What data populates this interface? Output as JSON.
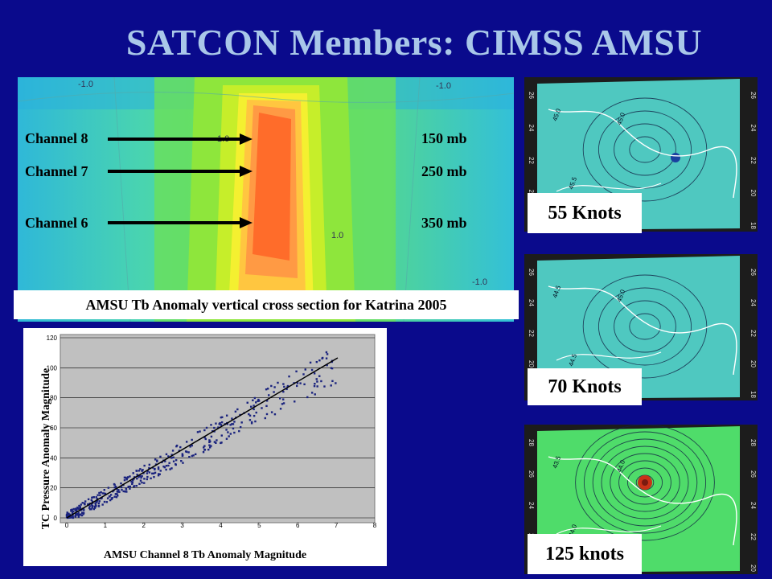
{
  "title": "SATCON Members:  CIMSS AMSU",
  "cross_section": {
    "caption": "AMSU Tb Anomaly vertical cross section for Katrina 2005",
    "channels": [
      {
        "label": "Channel 8",
        "level": "150 mb"
      },
      {
        "label": "Channel 7",
        "level": "250 mb"
      },
      {
        "label": "Channel 6",
        "level": "350 mb"
      }
    ],
    "contour_labels": [
      "-1.0",
      "-1.0",
      "1.0",
      "1.0",
      "-1.0"
    ]
  },
  "scatter": {
    "xlabel": "AMSU Channel 8 Tb Anomaly Magnitude",
    "ylabel": "TC Pressure Anomaly Magnitude",
    "x_ticks": [
      "0",
      "1",
      "2",
      "3",
      "4",
      "5",
      "6",
      "7",
      "8"
    ],
    "y_ticks": [
      "0",
      "20",
      "40",
      "60",
      "80",
      "100",
      "120"
    ]
  },
  "maps": [
    {
      "label": "55 Knots",
      "lat_ticks": [
        "26",
        "24",
        "22",
        "20",
        "18"
      ],
      "contours": [
        "45.0",
        "45.0",
        "45.5"
      ]
    },
    {
      "label": "70 Knots",
      "lat_ticks": [
        "26",
        "24",
        "22",
        "20",
        "18"
      ],
      "contours": [
        "44.5",
        "45.0",
        "44.5"
      ]
    },
    {
      "label": "125 knots",
      "lat_ticks": [
        "28",
        "26",
        "24",
        "22",
        "20"
      ],
      "contours": [
        "43.5",
        "44.0",
        "44.0"
      ]
    }
  ]
}
